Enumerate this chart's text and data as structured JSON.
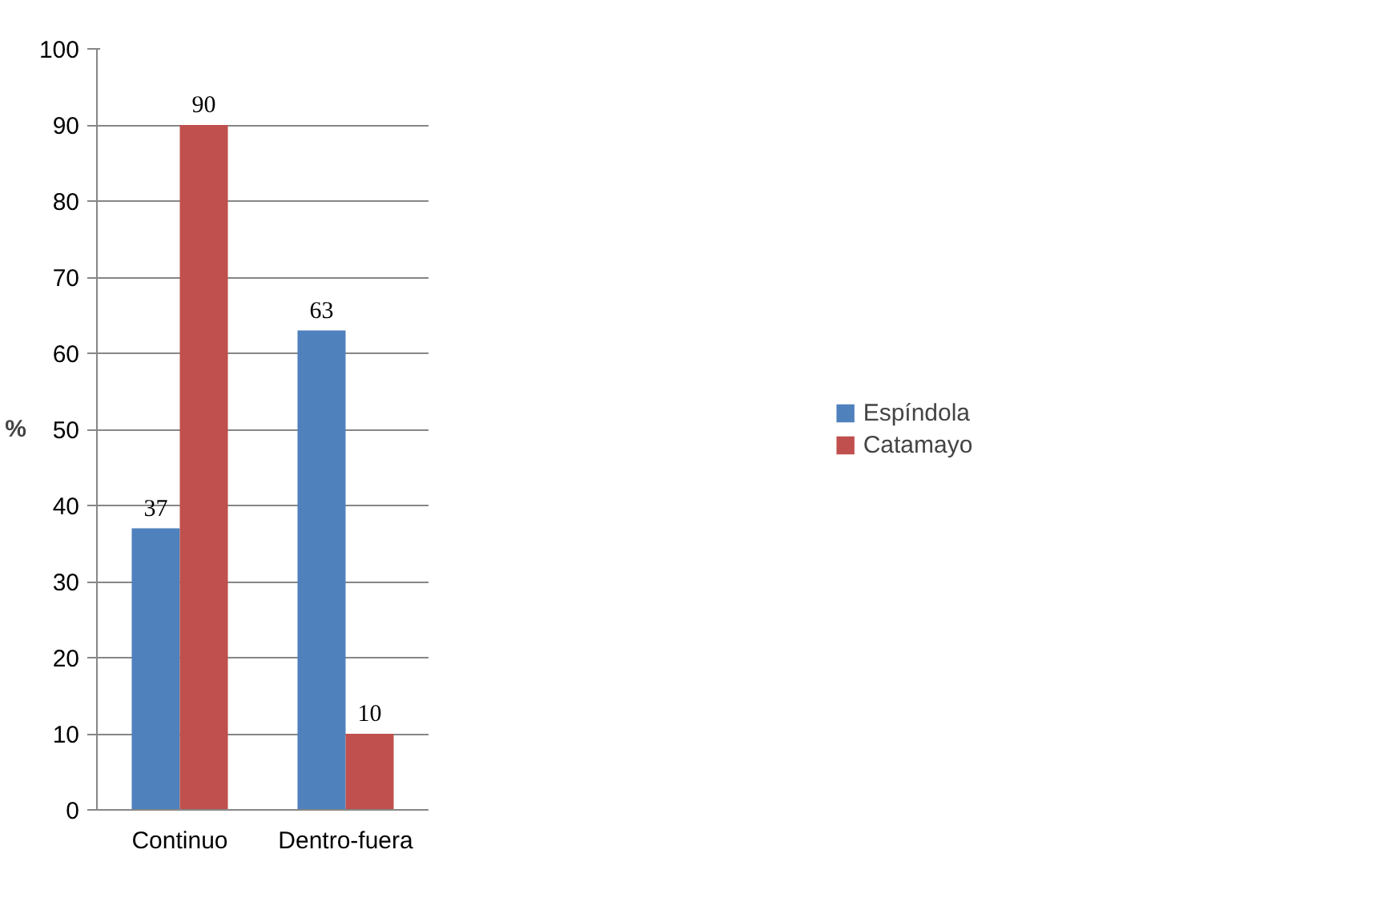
{
  "chart_data": {
    "type": "bar",
    "ylabel": "%",
    "categories": [
      "Continuo",
      "Dentro-fuera"
    ],
    "series": [
      {
        "name": "Espíndola",
        "color": "#4f81bd",
        "values": [
          37,
          63
        ]
      },
      {
        "name": "Catamayo",
        "color": "#c0504d",
        "values": [
          90,
          10
        ]
      }
    ],
    "ylim": [
      0,
      100
    ],
    "yticks": [
      0,
      10,
      20,
      30,
      40,
      50,
      60,
      70,
      80,
      90,
      100
    ],
    "grid": "y",
    "legend": "right",
    "data_labels": true
  }
}
